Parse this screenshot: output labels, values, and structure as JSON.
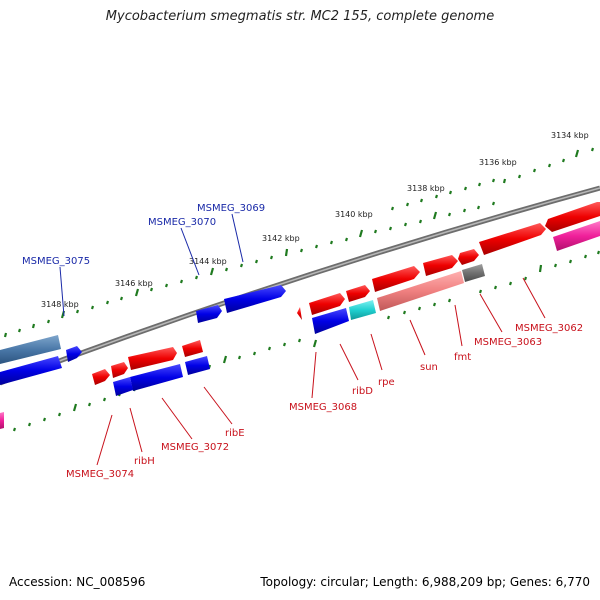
{
  "title": "Mycobacterium smegmatis str. MC2 155, complete genome",
  "footer": {
    "accession": "Accession: NC_008596",
    "summary": "Topology: circular; Length: 6,988,209 bp; Genes: 6,770"
  },
  "colors": {
    "forward_gene": "#e00000",
    "reverse_gene": "#0000e0",
    "backbone": "#8a8a8a",
    "tick": "#1f7a1f",
    "label_blue": "#1a2aa8",
    "label_red": "#c8121c"
  },
  "scale_labels": [
    {
      "text": "3134 kbp"
    },
    {
      "text": "3136 kbp"
    },
    {
      "text": "3138 kbp"
    },
    {
      "text": "3140 kbp"
    },
    {
      "text": "3142 kbp"
    },
    {
      "text": "3144 kbp"
    },
    {
      "text": "3146 kbp"
    },
    {
      "text": "3148 kbp"
    }
  ],
  "gene_labels_outer": [
    {
      "text": "MSMEG_3075"
    },
    {
      "text": "MSMEG_3070"
    },
    {
      "text": "MSMEG_3069"
    }
  ],
  "gene_labels_inner": [
    {
      "text": "MSMEG_3074"
    },
    {
      "text": "ribH"
    },
    {
      "text": "MSMEG_3072"
    },
    {
      "text": "ribE"
    },
    {
      "text": "MSMEG_3068"
    },
    {
      "text": "ribD"
    },
    {
      "text": "rpe"
    },
    {
      "text": "sun"
    },
    {
      "text": "fmt"
    },
    {
      "text": "MSMEG_3063"
    },
    {
      "text": "MSMEG_3062"
    }
  ]
}
